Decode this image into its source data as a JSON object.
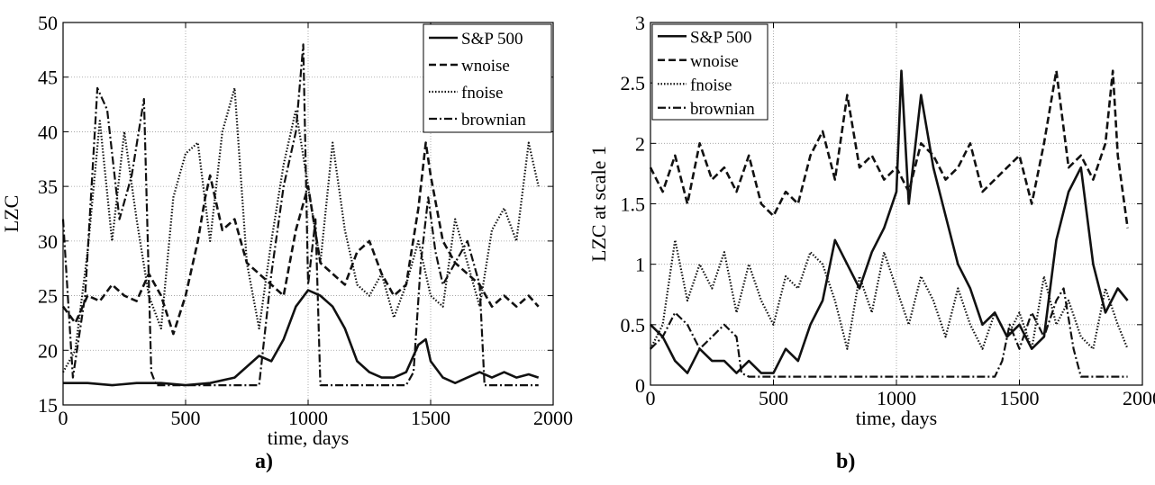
{
  "figure": {
    "panel_labels": [
      "a)",
      "b)"
    ]
  },
  "chart_data": [
    {
      "type": "line",
      "xlabel": "time, days",
      "ylabel": "LZC",
      "xlim": [
        0,
        2000
      ],
      "ylim": [
        15,
        50
      ],
      "xticks": [
        0,
        500,
        1000,
        1500,
        2000
      ],
      "yticks": [
        15,
        20,
        25,
        30,
        35,
        40,
        45,
        50
      ],
      "grid": true,
      "legend_position": "top-right",
      "series": [
        {
          "name": "S&P 500",
          "style": "solid",
          "x": [
            0,
            100,
            200,
            300,
            400,
            500,
            600,
            700,
            750,
            800,
            850,
            900,
            950,
            1000,
            1050,
            1100,
            1150,
            1200,
            1250,
            1300,
            1350,
            1400,
            1450,
            1480,
            1500,
            1550,
            1600,
            1650,
            1700,
            1750,
            1800,
            1850,
            1900,
            1940
          ],
          "y": [
            17,
            17,
            16.8,
            17,
            17,
            16.8,
            17,
            17.5,
            18.5,
            19.5,
            19,
            21,
            24,
            25.5,
            25,
            24,
            22,
            19,
            18,
            17.5,
            17.5,
            18,
            20.5,
            21,
            19,
            17.5,
            17,
            17.5,
            18,
            17.5,
            18,
            17.5,
            17.8,
            17.5
          ]
        },
        {
          "name": "wnoise",
          "style": "dashed",
          "x": [
            0,
            50,
            100,
            150,
            200,
            250,
            300,
            350,
            400,
            450,
            500,
            550,
            580,
            600,
            650,
            700,
            750,
            800,
            850,
            900,
            950,
            1000,
            1050,
            1100,
            1150,
            1200,
            1250,
            1300,
            1350,
            1400,
            1450,
            1480,
            1500,
            1550,
            1600,
            1650,
            1700,
            1750,
            1800,
            1850,
            1900,
            1940
          ],
          "y": [
            24,
            22.5,
            25,
            24.5,
            26,
            25,
            24.5,
            27,
            25,
            21.5,
            25,
            30,
            34,
            36,
            31,
            32,
            28,
            27,
            26,
            25,
            31,
            35,
            28,
            27,
            26,
            29,
            30,
            27,
            25,
            26,
            33,
            39,
            36,
            30,
            28,
            27,
            26,
            24,
            25,
            24,
            25,
            24
          ]
        },
        {
          "name": "fnoise",
          "style": "dotted",
          "x": [
            0,
            50,
            100,
            150,
            200,
            250,
            300,
            350,
            400,
            450,
            500,
            550,
            600,
            650,
            700,
            750,
            800,
            850,
            900,
            950,
            1000,
            1050,
            1100,
            1150,
            1200,
            1250,
            1300,
            1350,
            1400,
            1450,
            1500,
            1550,
            1600,
            1650,
            1700,
            1750,
            1800,
            1850,
            1900,
            1940
          ],
          "y": [
            18,
            20,
            29,
            41,
            30,
            40,
            32,
            25,
            22,
            34,
            38,
            39,
            30,
            40,
            44,
            28,
            22,
            30,
            37,
            42,
            35,
            28,
            39,
            31,
            26,
            25,
            27,
            23,
            26,
            30,
            25,
            24,
            32,
            28,
            24,
            31,
            33,
            30,
            39,
            35
          ]
        },
        {
          "name": "brownian",
          "style": "dashdot",
          "x": [
            0,
            40,
            90,
            140,
            180,
            230,
            280,
            330,
            360,
            380,
            420,
            500,
            600,
            700,
            800,
            850,
            900,
            950,
            980,
            1000,
            1030,
            1050,
            1100,
            1150,
            1200,
            1250,
            1300,
            1350,
            1400,
            1430,
            1460,
            1490,
            1520,
            1550,
            1600,
            1650,
            1700,
            1720,
            1750,
            1800,
            1850,
            1900,
            1940
          ],
          "y": [
            32,
            17.5,
            25,
            44,
            42,
            32,
            36,
            43,
            18,
            16.8,
            16.8,
            16.8,
            16.8,
            16.8,
            16.8,
            27,
            35,
            40,
            48,
            26,
            32,
            16.8,
            16.8,
            16.8,
            16.8,
            16.8,
            16.8,
            16.8,
            16.8,
            18,
            28,
            34,
            29,
            26,
            28,
            30,
            26,
            16.8,
            16.8,
            16.8,
            16.8,
            16.8,
            16.8
          ]
        }
      ]
    },
    {
      "type": "line",
      "xlabel": "time, days",
      "ylabel": "LZC at scale 1",
      "xlim": [
        0,
        2000
      ],
      "ylim": [
        0,
        3
      ],
      "xticks": [
        0,
        500,
        1000,
        1500,
        2000
      ],
      "yticks": [
        0,
        0.5,
        1,
        1.5,
        2,
        2.5,
        3
      ],
      "ytick_labels": [
        "0",
        "0.5",
        "1",
        "1.5",
        "2",
        "2.5",
        "3"
      ],
      "grid": true,
      "legend_position": "top-left",
      "series": [
        {
          "name": "S&P 500",
          "style": "solid",
          "x": [
            0,
            50,
            100,
            150,
            200,
            250,
            300,
            350,
            400,
            450,
            500,
            550,
            600,
            650,
            700,
            750,
            800,
            850,
            900,
            950,
            1000,
            1020,
            1050,
            1100,
            1150,
            1200,
            1250,
            1300,
            1350,
            1400,
            1450,
            1500,
            1550,
            1600,
            1650,
            1700,
            1750,
            1800,
            1850,
            1900,
            1940
          ],
          "y": [
            0.5,
            0.4,
            0.2,
            0.1,
            0.3,
            0.2,
            0.2,
            0.1,
            0.2,
            0.1,
            0.1,
            0.3,
            0.2,
            0.5,
            0.7,
            1.2,
            1.0,
            0.8,
            1.1,
            1.3,
            1.6,
            2.6,
            1.5,
            2.4,
            1.8,
            1.4,
            1.0,
            0.8,
            0.5,
            0.6,
            0.4,
            0.5,
            0.3,
            0.4,
            1.2,
            1.6,
            1.8,
            1.0,
            0.6,
            0.8,
            0.7
          ]
        },
        {
          "name": "wnoise",
          "style": "dashed",
          "x": [
            0,
            50,
            100,
            150,
            200,
            250,
            300,
            350,
            400,
            450,
            500,
            550,
            600,
            650,
            700,
            750,
            800,
            850,
            900,
            950,
            1000,
            1050,
            1100,
            1150,
            1200,
            1250,
            1300,
            1350,
            1400,
            1450,
            1500,
            1550,
            1600,
            1650,
            1700,
            1750,
            1800,
            1850,
            1880,
            1900,
            1940
          ],
          "y": [
            1.8,
            1.6,
            1.9,
            1.5,
            2.0,
            1.7,
            1.8,
            1.6,
            1.9,
            1.5,
            1.4,
            1.6,
            1.5,
            1.9,
            2.1,
            1.7,
            2.4,
            1.8,
            1.9,
            1.7,
            1.8,
            1.6,
            2.0,
            1.9,
            1.7,
            1.8,
            2.0,
            1.6,
            1.7,
            1.8,
            1.9,
            1.5,
            2.0,
            2.6,
            1.8,
            1.9,
            1.7,
            2.0,
            2.6,
            1.9,
            1.3
          ]
        },
        {
          "name": "fnoise",
          "style": "dotted",
          "x": [
            0,
            50,
            100,
            150,
            200,
            250,
            300,
            350,
            400,
            450,
            500,
            550,
            600,
            650,
            700,
            750,
            800,
            850,
            900,
            950,
            1000,
            1050,
            1100,
            1150,
            1200,
            1250,
            1300,
            1350,
            1400,
            1450,
            1500,
            1550,
            1600,
            1650,
            1700,
            1750,
            1800,
            1850,
            1900,
            1940
          ],
          "y": [
            0.3,
            0.5,
            1.2,
            0.7,
            1.0,
            0.8,
            1.1,
            0.6,
            1.0,
            0.7,
            0.5,
            0.9,
            0.8,
            1.1,
            1.0,
            0.7,
            0.3,
            0.9,
            0.6,
            1.1,
            0.8,
            0.5,
            0.9,
            0.7,
            0.4,
            0.8,
            0.5,
            0.3,
            0.6,
            0.4,
            0.6,
            0.3,
            0.9,
            0.5,
            0.7,
            0.4,
            0.3,
            0.8,
            0.5,
            0.3
          ]
        },
        {
          "name": "brownian",
          "style": "dashdot",
          "x": [
            0,
            50,
            100,
            150,
            200,
            250,
            300,
            350,
            370,
            400,
            500,
            600,
            700,
            800,
            900,
            1000,
            1100,
            1200,
            1300,
            1400,
            1430,
            1460,
            1500,
            1550,
            1600,
            1650,
            1680,
            1720,
            1750,
            1800,
            1900,
            1940
          ],
          "y": [
            0.3,
            0.4,
            0.6,
            0.5,
            0.3,
            0.4,
            0.5,
            0.4,
            0.1,
            0.07,
            0.07,
            0.07,
            0.07,
            0.07,
            0.07,
            0.07,
            0.07,
            0.07,
            0.07,
            0.07,
            0.2,
            0.5,
            0.3,
            0.6,
            0.4,
            0.7,
            0.8,
            0.3,
            0.07,
            0.07,
            0.07,
            0.07
          ]
        }
      ]
    }
  ]
}
